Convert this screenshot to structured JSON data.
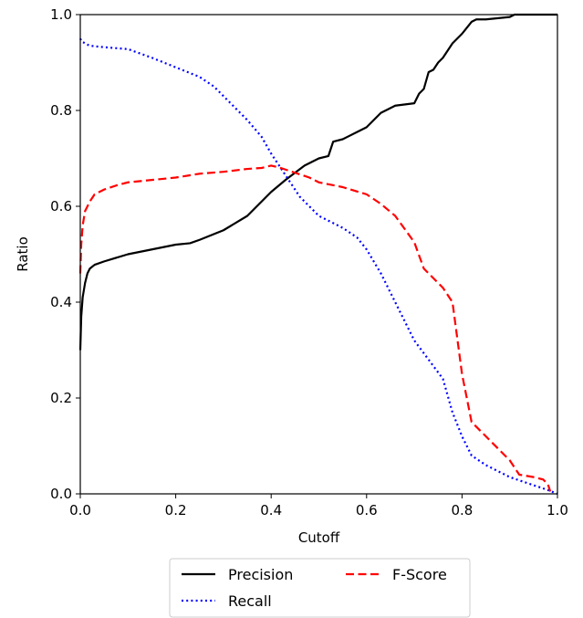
{
  "chart_data": {
    "type": "line",
    "xlabel": "Cutoff",
    "ylabel": "Ratio",
    "xlim": [
      0.0,
      1.0
    ],
    "ylim": [
      0.0,
      1.0
    ],
    "xticks": [
      "0.0",
      "0.2",
      "0.4",
      "0.6",
      "0.8",
      "1.0"
    ],
    "yticks": [
      "0.0",
      "0.2",
      "0.4",
      "0.6",
      "0.8",
      "1.0"
    ],
    "grid": false,
    "legend_position": "below",
    "series": [
      {
        "name": "Precision",
        "color": "#000000",
        "style": "solid",
        "x": [
          0.0,
          0.002,
          0.005,
          0.01,
          0.015,
          0.02,
          0.03,
          0.05,
          0.1,
          0.15,
          0.2,
          0.23,
          0.25,
          0.3,
          0.35,
          0.38,
          0.4,
          0.43,
          0.45,
          0.47,
          0.5,
          0.52,
          0.53,
          0.55,
          0.58,
          0.6,
          0.63,
          0.66,
          0.7,
          0.71,
          0.72,
          0.73,
          0.74,
          0.75,
          0.76,
          0.78,
          0.8,
          0.82,
          0.83,
          0.85,
          0.9,
          0.91,
          0.95,
          1.0
        ],
        "y": [
          0.3,
          0.37,
          0.41,
          0.44,
          0.46,
          0.47,
          0.478,
          0.485,
          0.5,
          0.51,
          0.52,
          0.523,
          0.53,
          0.55,
          0.58,
          0.61,
          0.63,
          0.655,
          0.67,
          0.685,
          0.7,
          0.705,
          0.735,
          0.74,
          0.755,
          0.765,
          0.795,
          0.81,
          0.815,
          0.835,
          0.845,
          0.88,
          0.885,
          0.9,
          0.91,
          0.94,
          0.96,
          0.985,
          0.99,
          0.99,
          0.995,
          1.0,
          1.0,
          1.0
        ]
      },
      {
        "name": "Recall",
        "color": "#0000ff",
        "style": "dotted",
        "x": [
          0.0,
          0.002,
          0.01,
          0.02,
          0.05,
          0.1,
          0.15,
          0.2,
          0.25,
          0.28,
          0.32,
          0.35,
          0.38,
          0.4,
          0.42,
          0.44,
          0.46,
          0.48,
          0.5,
          0.52,
          0.55,
          0.58,
          0.6,
          0.63,
          0.66,
          0.7,
          0.73,
          0.76,
          0.78,
          0.8,
          0.82,
          0.85,
          0.9,
          0.95,
          0.98,
          1.0
        ],
        "y": [
          0.95,
          0.945,
          0.94,
          0.935,
          0.932,
          0.928,
          0.91,
          0.89,
          0.87,
          0.85,
          0.81,
          0.78,
          0.745,
          0.71,
          0.68,
          0.65,
          0.62,
          0.6,
          0.58,
          0.57,
          0.555,
          0.535,
          0.51,
          0.46,
          0.4,
          0.32,
          0.28,
          0.24,
          0.17,
          0.12,
          0.08,
          0.06,
          0.035,
          0.018,
          0.008,
          0.0
        ]
      },
      {
        "name": "F-Score",
        "color": "#ff0000",
        "style": "dashed",
        "x": [
          0.0,
          0.002,
          0.005,
          0.01,
          0.02,
          0.03,
          0.05,
          0.08,
          0.1,
          0.15,
          0.2,
          0.25,
          0.3,
          0.35,
          0.38,
          0.4,
          0.42,
          0.45,
          0.48,
          0.5,
          0.55,
          0.6,
          0.63,
          0.66,
          0.7,
          0.72,
          0.74,
          0.76,
          0.78,
          0.8,
          0.82,
          0.85,
          0.9,
          0.92,
          0.95,
          0.97,
          0.98,
          0.985
        ],
        "y": [
          0.46,
          0.52,
          0.56,
          0.59,
          0.61,
          0.625,
          0.635,
          0.645,
          0.65,
          0.655,
          0.66,
          0.668,
          0.672,
          0.678,
          0.68,
          0.685,
          0.68,
          0.67,
          0.66,
          0.65,
          0.64,
          0.625,
          0.605,
          0.58,
          0.525,
          0.47,
          0.45,
          0.43,
          0.4,
          0.25,
          0.15,
          0.12,
          0.07,
          0.04,
          0.035,
          0.03,
          0.02,
          0.005
        ]
      }
    ]
  }
}
